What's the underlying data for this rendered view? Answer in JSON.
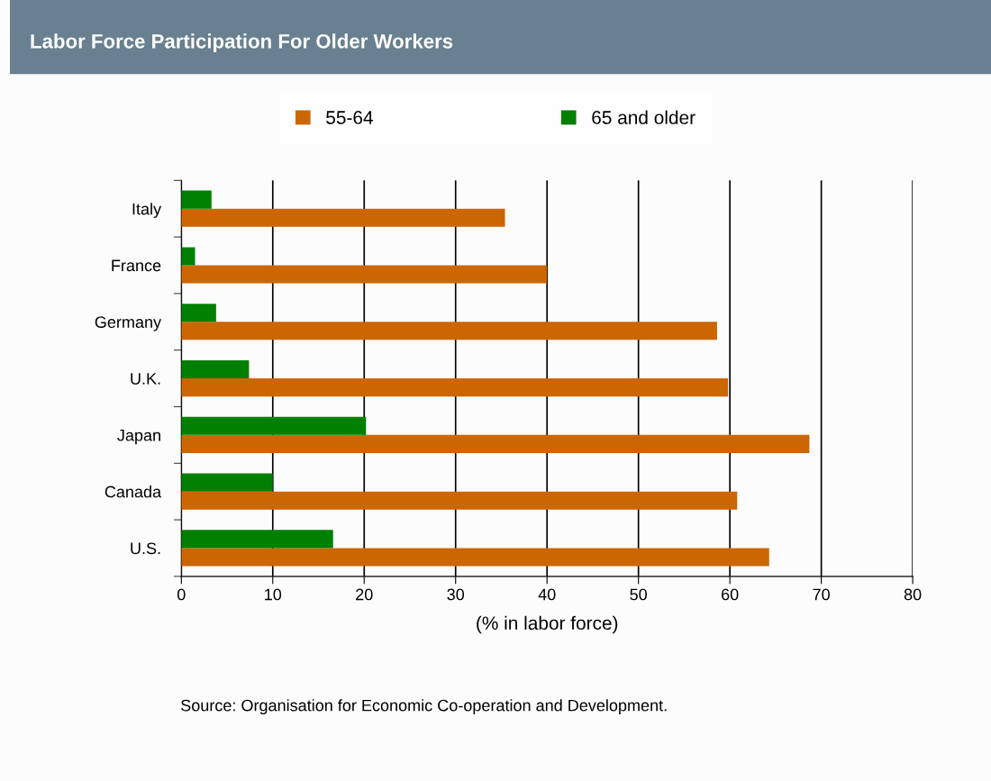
{
  "chart_data": {
    "type": "bar",
    "orientation": "horizontal",
    "title": "Labor Force Participation For Older Workers",
    "categories": [
      "Italy",
      "France",
      "Germany",
      "U.K.",
      "Japan",
      "Canada",
      "U.S."
    ],
    "series": [
      {
        "name": "55-64",
        "color": "#cc6600",
        "values": [
          35.4,
          40.0,
          58.6,
          59.8,
          68.7,
          60.8,
          64.3
        ]
      },
      {
        "name": "65 and older",
        "color": "#008000",
        "values": [
          3.3,
          1.5,
          3.8,
          7.4,
          20.2,
          10.0,
          16.6
        ]
      }
    ],
    "xlabel": "(% in labor force)",
    "xlim": [
      0,
      80
    ],
    "xticks": [
      0,
      10,
      20,
      30,
      40,
      50,
      60,
      70,
      80
    ],
    "grid": "x",
    "legend": "top",
    "annotations": [
      "Source: Organisation for Economic Co-operation and Development."
    ]
  }
}
